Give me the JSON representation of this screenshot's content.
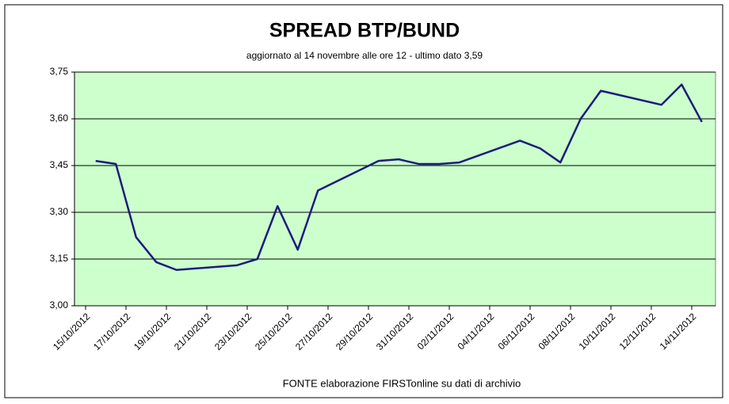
{
  "chart_data": {
    "type": "line",
    "title": "SPREAD  BTP/BUND",
    "subtitle": "aggiornato al 14 novembre alle ore 12 - ultimo dato 3,59",
    "source": "FONTE elaborazione FIRSTonline su dati di archivio",
    "x": [
      "15/10/2012",
      "16/10/2012",
      "17/10/2012",
      "18/10/2012",
      "19/10/2012",
      "22/10/2012",
      "23/10/2012",
      "24/10/2012",
      "25/10/2012",
      "26/10/2012",
      "29/10/2012",
      "30/10/2012",
      "31/10/2012",
      "01/11/2012",
      "02/11/2012",
      "05/11/2012",
      "06/11/2012",
      "07/11/2012",
      "08/11/2012",
      "09/11/2012",
      "12/11/2012",
      "13/11/2012",
      "14/11/2012"
    ],
    "series": [
      {
        "name": "Spread BTP/Bund",
        "color": "#1c1c7a",
        "values": [
          3.465,
          3.455,
          3.22,
          3.14,
          3.115,
          3.13,
          3.15,
          3.32,
          3.18,
          3.37,
          3.465,
          3.47,
          3.455,
          3.455,
          3.46,
          3.53,
          3.505,
          3.46,
          3.6,
          3.69,
          3.645,
          3.71,
          3.59
        ]
      }
    ],
    "xticks": [
      "15/10/2012",
      "17/10/2012",
      "19/10/2012",
      "21/10/2012",
      "23/10/2012",
      "25/10/2012",
      "27/10/2012",
      "29/10/2012",
      "31/10/2012",
      "02/11/2012",
      "04/11/2012",
      "06/11/2012",
      "08/11/2012",
      "10/11/2012",
      "12/11/2012",
      "14/11/2012"
    ],
    "ylim": [
      3.0,
      3.75
    ],
    "yticks": [
      {
        "value": 3.0,
        "label": "3,00"
      },
      {
        "value": 3.15,
        "label": "3,15"
      },
      {
        "value": 3.3,
        "label": "3,30"
      },
      {
        "value": 3.45,
        "label": "3,45"
      },
      {
        "value": 3.6,
        "label": "3,60"
      },
      {
        "value": 3.75,
        "label": "3,75"
      }
    ],
    "grid": true,
    "plot_background": "#ccffcc"
  }
}
